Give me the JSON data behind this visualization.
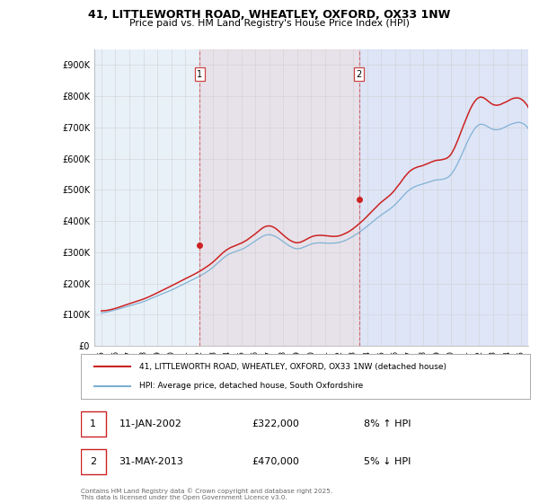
{
  "title_line1": "41, LITTLEWORTH ROAD, WHEATLEY, OXFORD, OX33 1NW",
  "title_line2": "Price paid vs. HM Land Registry's House Price Index (HPI)",
  "ylim": [
    0,
    950000
  ],
  "yticks": [
    0,
    100000,
    200000,
    300000,
    400000,
    500000,
    600000,
    700000,
    800000,
    900000
  ],
  "ytick_labels": [
    "£0",
    "£100K",
    "£200K",
    "£300K",
    "£400K",
    "£500K",
    "£600K",
    "£700K",
    "£800K",
    "£900K"
  ],
  "hpi_color": "#7bafd4",
  "price_color": "#cc2222",
  "sale1_x": 2002.04,
  "sale2_x": 2013.42,
  "sale1_price": 322000,
  "sale2_price": 470000,
  "legend_label1": "41, LITTLEWORTH ROAD, WHEATLEY, OXFORD, OX33 1NW (detached house)",
  "legend_label2": "HPI: Average price, detached house, South Oxfordshire",
  "footnote": "Contains HM Land Registry data © Crown copyright and database right 2025.\nThis data is licensed under the Open Government Licence v3.0.",
  "grid_color": "#cccccc",
  "chart_bg": "#e8f0f8",
  "xmin": 1995.0,
  "xmax": 2025.5
}
